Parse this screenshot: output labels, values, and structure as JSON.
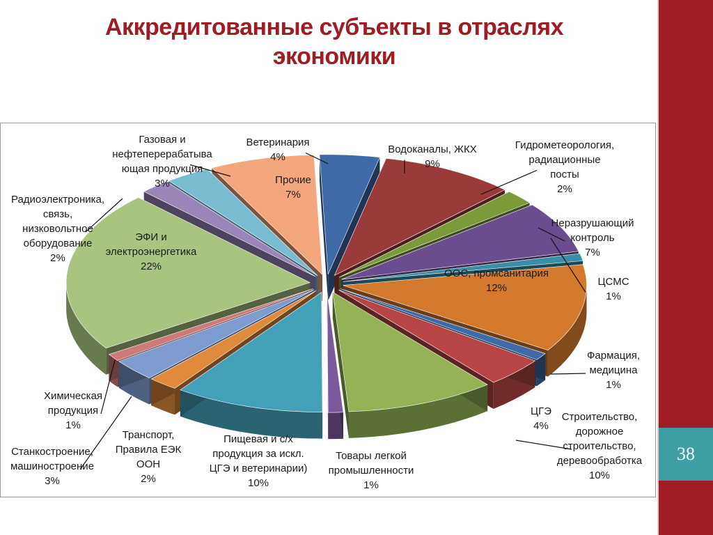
{
  "slide": {
    "title_line1": "Аккредитованные субъекты в отраслях",
    "title_line2": "экономики",
    "page_number": "38"
  },
  "colors": {
    "title": "#9e1c22",
    "sidebar": "#9e1c22",
    "page_box": "#3f9ea3"
  },
  "chart_data": {
    "type": "pie",
    "style": "3d-exploded",
    "legend": "none",
    "slices": [
      {
        "label": "Ветеринария",
        "value": 4,
        "value_label": "4%",
        "color": "#3f6aa8"
      },
      {
        "label": "Водоканалы, ЖКХ",
        "value": 9,
        "value_label": "9%",
        "color": "#9a3b3b"
      },
      {
        "label": "Гидрометеорология, радиационные посты",
        "value": 2,
        "value_label": "2%",
        "color": "#7d9a3b"
      },
      {
        "label": "Неразрушающий контроль",
        "value": 7,
        "value_label": "7%",
        "color": "#6a4d8f"
      },
      {
        "label": "ЦСМС",
        "value": 1,
        "value_label": "1%",
        "color": "#3a8fa8"
      },
      {
        "label": "ООС, промсанитария",
        "value": 12,
        "value_label": "12%",
        "color": "#d2792c"
      },
      {
        "label": "Фармация, медицина",
        "value": 1,
        "value_label": "1%",
        "color": "#3f6aa8"
      },
      {
        "label": "ЦГЭ",
        "value": 4,
        "value_label": "4%",
        "color": "#b84545"
      },
      {
        "label": "Строительство, дорожное строительство, деревообработка",
        "value": 10,
        "value_label": "10%",
        "color": "#95b356"
      },
      {
        "label": "Товары легкой промышленности",
        "value": 1,
        "value_label": "1%",
        "color": "#7a5a9a"
      },
      {
        "label": "Пищевая и с/х продукция за искл. ЦГЭ и ветеринарии)",
        "value": 10,
        "value_label": "10%",
        "color": "#43a0b8"
      },
      {
        "label": "Транспорт, Правила ЕЭК ООН",
        "value": 2,
        "value_label": "2%",
        "color": "#e08a3c"
      },
      {
        "label": "Станкостроение, машиностроение",
        "value": 3,
        "value_label": "3%",
        "color": "#7e9ccf"
      },
      {
        "label": "Химическая продукция",
        "value": 1,
        "value_label": "1%",
        "color": "#cf7a7a"
      },
      {
        "label": "ЭФИ и электроэнергетика",
        "value": 22,
        "value_label": "22%",
        "color": "#a9c47f"
      },
      {
        "label": "Радиоэлектроника, связь, низковольтное оборудование",
        "value": 2,
        "value_label": "2%",
        "color": "#9a86b8"
      },
      {
        "label": "Газовая и нефтеперерабатывающая продукция",
        "value": 3,
        "value_label": "3%",
        "color": "#79bcd0"
      },
      {
        "label": "Прочие",
        "value": 7,
        "value_label": "7%",
        "color": "#f4a77c"
      }
    ]
  }
}
